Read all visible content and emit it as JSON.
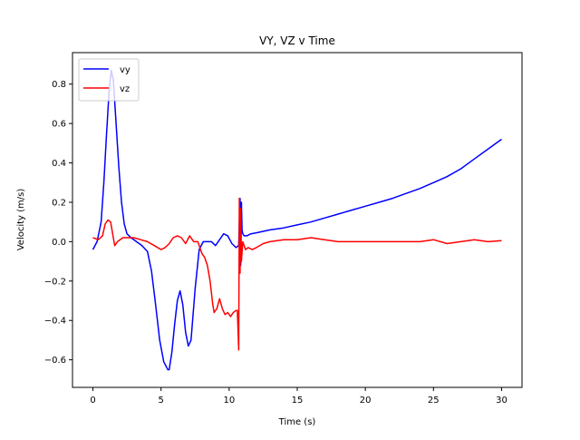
{
  "chart_data": {
    "type": "line",
    "title": "VY, VZ v Time",
    "xlabel": "Time (s)",
    "ylabel": "Velocity (m/s)",
    "xlim": [
      -1.5,
      31.5
    ],
    "ylim": [
      -0.74,
      0.96
    ],
    "xticks": [
      0,
      5,
      10,
      15,
      20,
      25,
      30
    ],
    "xtick_labels": [
      "0",
      "5",
      "10",
      "15",
      "20",
      "25",
      "30"
    ],
    "yticks": [
      -0.6,
      -0.4,
      -0.2,
      0.0,
      0.2,
      0.4,
      0.6,
      0.8
    ],
    "ytick_labels": [
      "−0.6",
      "−0.4",
      "−0.2",
      "0.0",
      "0.2",
      "0.4",
      "0.6",
      "0.8"
    ],
    "grid": false,
    "legend_position": "top-left",
    "series": [
      {
        "name": "vy",
        "color": "#0000ff",
        "x": [
          0,
          0.3,
          0.6,
          0.8,
          1.0,
          1.2,
          1.35,
          1.5,
          1.7,
          1.9,
          2.1,
          2.3,
          2.5,
          2.8,
          3.2,
          3.6,
          4.0,
          4.3,
          4.6,
          4.9,
          5.2,
          5.5,
          5.6,
          5.8,
          6.0,
          6.2,
          6.4,
          6.6,
          6.8,
          7.0,
          7.2,
          7.5,
          7.8,
          8.1,
          8.4,
          8.7,
          9.0,
          9.3,
          9.6,
          9.9,
          10.2,
          10.5,
          10.7,
          10.8,
          10.85,
          10.9,
          10.95,
          11.0,
          11.1,
          11.3,
          11.6,
          12.0,
          13.0,
          14.0,
          15.0,
          16.0,
          17.0,
          18.0,
          19.0,
          20.0,
          21.0,
          22.0,
          23.0,
          24.0,
          25.0,
          26.0,
          27.0,
          28.0,
          29.0,
          30.0
        ],
        "y": [
          -0.04,
          0.0,
          0.1,
          0.3,
          0.55,
          0.78,
          0.87,
          0.82,
          0.6,
          0.38,
          0.2,
          0.09,
          0.04,
          0.02,
          0.0,
          -0.02,
          -0.05,
          -0.15,
          -0.32,
          -0.5,
          -0.61,
          -0.65,
          -0.65,
          -0.56,
          -0.42,
          -0.3,
          -0.25,
          -0.32,
          -0.46,
          -0.53,
          -0.5,
          -0.24,
          -0.04,
          0.0,
          0.0,
          0.0,
          -0.02,
          0.01,
          0.04,
          0.03,
          -0.01,
          -0.03,
          -0.02,
          0.22,
          -0.12,
          0.2,
          0.06,
          0.04,
          0.03,
          0.03,
          0.04,
          0.045,
          0.06,
          0.07,
          0.085,
          0.1,
          0.12,
          0.14,
          0.16,
          0.18,
          0.2,
          0.22,
          0.245,
          0.27,
          0.3,
          0.33,
          0.37,
          0.42,
          0.47,
          0.52
        ]
      },
      {
        "name": "vz",
        "color": "#ff0000",
        "x": [
          0,
          0.4,
          0.7,
          0.9,
          1.1,
          1.3,
          1.45,
          1.6,
          1.8,
          2.2,
          2.6,
          3.0,
          3.5,
          4.0,
          4.5,
          5.0,
          5.3,
          5.6,
          5.9,
          6.2,
          6.5,
          6.8,
          7.1,
          7.4,
          7.7,
          8.0,
          8.2,
          8.4,
          8.6,
          8.8,
          8.9,
          9.1,
          9.3,
          9.5,
          9.7,
          9.9,
          10.1,
          10.3,
          10.5,
          10.6,
          10.7,
          10.75,
          10.8,
          10.85,
          10.9,
          11.0,
          11.1,
          11.2,
          11.4,
          11.7,
          12.0,
          12.5,
          13.0,
          14.0,
          15.0,
          16.0,
          17.0,
          18.0,
          19.0,
          20.0,
          21.0,
          22.0,
          23.0,
          24.0,
          25.0,
          26.0,
          27.0,
          28.0,
          29.0,
          30.0
        ],
        "y": [
          0.02,
          0.01,
          0.03,
          0.09,
          0.11,
          0.1,
          0.04,
          -0.02,
          0.0,
          0.02,
          0.02,
          0.02,
          0.01,
          0.0,
          -0.02,
          -0.04,
          -0.03,
          -0.01,
          0.02,
          0.03,
          0.02,
          -0.01,
          0.03,
          0.0,
          0.0,
          -0.06,
          -0.08,
          -0.12,
          -0.2,
          -0.32,
          -0.36,
          -0.34,
          -0.29,
          -0.34,
          -0.37,
          -0.36,
          -0.38,
          -0.36,
          -0.35,
          -0.35,
          -0.55,
          0.22,
          -0.16,
          0.17,
          -0.1,
          0.0,
          -0.02,
          -0.04,
          -0.03,
          -0.04,
          -0.03,
          -0.01,
          0.0,
          0.01,
          0.01,
          0.02,
          0.01,
          0.0,
          0.0,
          0.0,
          0.0,
          0.0,
          0.0,
          0.0,
          0.01,
          -0.01,
          0.0,
          0.01,
          0.0,
          0.005
        ]
      }
    ]
  }
}
